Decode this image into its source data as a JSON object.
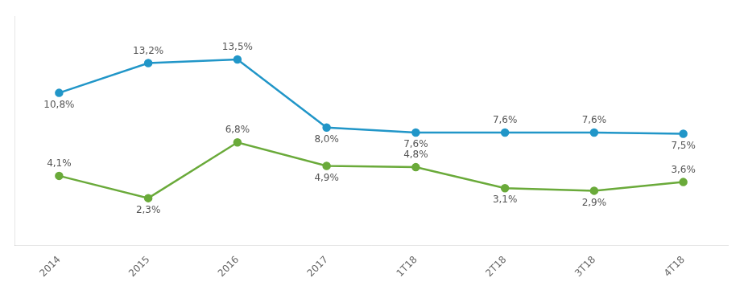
{
  "chart_data": {
    "type": "line",
    "categories": [
      "2014",
      "2015",
      "2016",
      "2017",
      "1T18",
      "2T18",
      "3T18",
      "4T18"
    ],
    "series": [
      {
        "color": "#2196c8",
        "values": [
          10.8,
          13.2,
          13.5,
          8.0,
          7.6,
          7.6,
          7.6,
          7.5
        ],
        "value_labels": [
          "10,8%",
          "13,2%",
          "13,5%",
          "8,0%",
          "7,6%",
          "7,6%",
          "7,6%",
          "7,5%"
        ]
      },
      {
        "color": "#6aaa3a",
        "values": [
          4.1,
          2.3,
          6.8,
          4.9,
          4.8,
          3.1,
          2.9,
          3.6
        ],
        "value_labels": [
          "4,1%",
          "2,3%",
          "6,8%",
          "4,9%",
          "4,8%",
          "3,1%",
          "2,9%",
          "3,6%"
        ]
      }
    ],
    "ylim": [
      -1.5,
      17
    ],
    "yticks": [],
    "grid": false,
    "data_labels": true,
    "tick_labels": "x",
    "marker": "o"
  }
}
